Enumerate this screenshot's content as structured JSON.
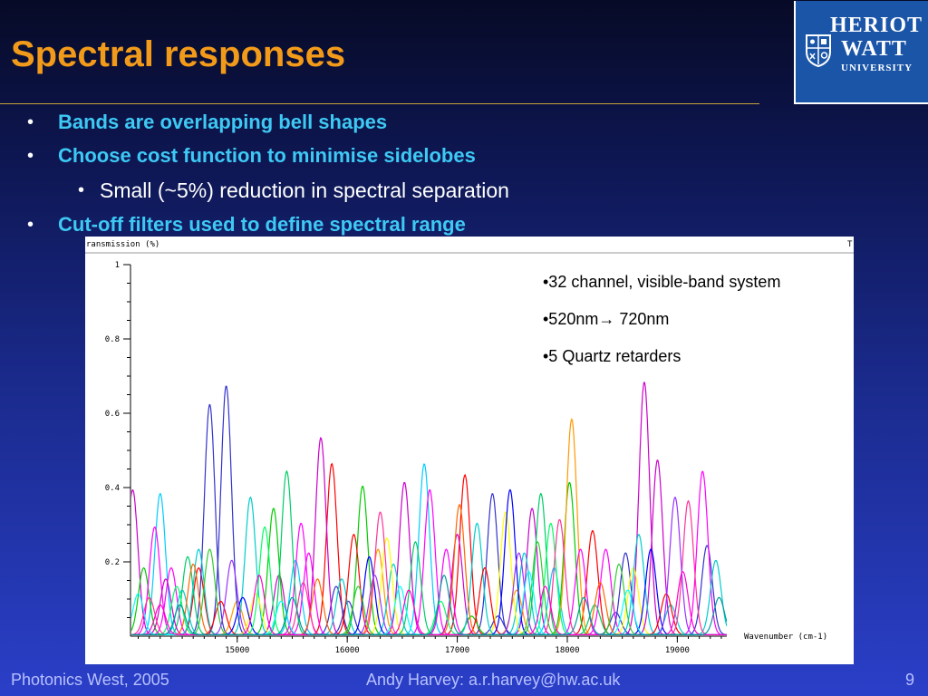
{
  "slide": {
    "title": "Spectral responses",
    "logo": {
      "line1": "HERIOT",
      "line2": "WATT",
      "line3": "UNIVERSITY"
    },
    "bullets": [
      {
        "text": "Bands are overlapping bell shapes",
        "level": 1
      },
      {
        "text": "Choose cost function to minimise sidelobes",
        "level": 1
      },
      {
        "text": "Small (~5%) reduction in spectral separation",
        "level": 2
      },
      {
        "text": "Cut-off filters used to define spectral range",
        "level": 1
      }
    ],
    "annotations": [
      "•32 channel, visible-band system",
      "•520nm→ 720nm",
      "•5 Quartz retarders"
    ],
    "footer": {
      "left": "Photonics West, 2005",
      "center": "Andy Harvey: a.r.harvey@hw.ac.uk",
      "page": "9"
    },
    "colors": {
      "title": "#f29a1a",
      "bullet_level1": "#3ec9f5",
      "rule": "#c9a23a",
      "logo_bg": "#1a55a8"
    }
  },
  "chart_data": {
    "type": "line",
    "ylabel": "ransmission (%)",
    "xlabel": "Wavenumber (cm-1)",
    "top_right_label": "T",
    "xlim": [
      14030,
      19450
    ],
    "ylim": [
      0,
      1
    ],
    "x_ticks": [
      15000,
      16000,
      17000,
      18000,
      19000
    ],
    "y_ticks": [
      0.2,
      0.4,
      0.6,
      0.8,
      1
    ],
    "y_tick_labels": [
      "0.2",
      "0.4",
      "0.6",
      "0.8",
      "1"
    ],
    "grid": false,
    "legend": "none",
    "channels": 32,
    "series": [
      {
        "color": "#cc00cc",
        "peaks": [
          [
            14050,
            0.39
          ],
          [
            15380,
            0.16
          ],
          [
            16520,
            0.41
          ],
          [
            17680,
            0.34
          ],
          [
            18700,
            0.68
          ]
        ]
      },
      {
        "color": "#ff0000",
        "peaks": [
          [
            14650,
            0.18
          ],
          [
            15860,
            0.46
          ],
          [
            17070,
            0.43
          ],
          [
            18230,
            0.28
          ]
        ]
      },
      {
        "color": "#00ccff",
        "peaks": [
          [
            14300,
            0.38
          ],
          [
            15530,
            0.2
          ],
          [
            16700,
            0.46
          ],
          [
            17880,
            0.18
          ]
        ]
      },
      {
        "color": "#3333cc",
        "peaks": [
          [
            14750,
            0.62
          ],
          [
            15900,
            0.13
          ],
          [
            17320,
            0.38
          ],
          [
            18440,
            0.06
          ]
        ]
      },
      {
        "color": "#00cc00",
        "peaks": [
          [
            14150,
            0.18
          ],
          [
            15330,
            0.34
          ],
          [
            16140,
            0.4
          ],
          [
            17130,
            0.05
          ],
          [
            18020,
            0.41
          ]
        ]
      },
      {
        "color": "#ff9900",
        "peaks": [
          [
            15000,
            0.09
          ],
          [
            16280,
            0.23
          ],
          [
            17540,
            0.12
          ],
          [
            18040,
            0.58
          ]
        ]
      },
      {
        "color": "#ff00ff",
        "peaks": [
          [
            14400,
            0.18
          ],
          [
            15580,
            0.3
          ],
          [
            16900,
            0.23
          ],
          [
            18350,
            0.23
          ]
        ]
      },
      {
        "color": "#00cccc",
        "peaks": [
          [
            14500,
            0.12
          ],
          [
            15120,
            0.37
          ],
          [
            16420,
            0.19
          ],
          [
            17610,
            0.22
          ],
          [
            18940,
            0.08
          ]
        ]
      },
      {
        "color": "#3333cc",
        "peaks": [
          [
            14900,
            0.67
          ],
          [
            16010,
            0.09
          ],
          [
            17370,
            0.05
          ],
          [
            18530,
            0.22
          ],
          [
            19270,
            0.24
          ]
        ]
      },
      {
        "color": "#ff00ff",
        "peaks": [
          [
            14250,
            0.29
          ],
          [
            15650,
            0.22
          ],
          [
            16750,
            0.39
          ],
          [
            18120,
            0.23
          ],
          [
            19230,
            0.44
          ]
        ]
      },
      {
        "color": "#ffff00",
        "peaks": [
          [
            15170,
            0.11
          ],
          [
            16360,
            0.26
          ],
          [
            17440,
            0.33
          ],
          [
            18600,
            0.18
          ]
        ]
      },
      {
        "color": "#00cc66",
        "peaks": [
          [
            14550,
            0.21
          ],
          [
            15450,
            0.44
          ],
          [
            16620,
            0.25
          ],
          [
            17760,
            0.38
          ],
          [
            18250,
            0.08
          ]
        ]
      },
      {
        "color": "#cc00cc",
        "peaks": [
          [
            14350,
            0.15
          ],
          [
            15760,
            0.53
          ],
          [
            17000,
            0.27
          ],
          [
            18820,
            0.47
          ]
        ]
      },
      {
        "color": "#00cccc",
        "peaks": [
          [
            14650,
            0.23
          ],
          [
            15950,
            0.15
          ],
          [
            17180,
            0.3
          ],
          [
            18650,
            0.27
          ],
          [
            19350,
            0.2
          ]
        ]
      },
      {
        "color": "#ff0000",
        "peaks": [
          [
            14850,
            0.09
          ],
          [
            16060,
            0.27
          ],
          [
            17250,
            0.18
          ],
          [
            18900,
            0.11
          ]
        ]
      },
      {
        "color": "#0000ff",
        "peaks": [
          [
            15050,
            0.1
          ],
          [
            16200,
            0.21
          ],
          [
            17480,
            0.39
          ],
          [
            18760,
            0.23
          ]
        ]
      },
      {
        "color": "#ff6600",
        "peaks": [
          [
            14600,
            0.19
          ],
          [
            15730,
            0.15
          ],
          [
            17020,
            0.35
          ],
          [
            18300,
            0.14
          ]
        ]
      },
      {
        "color": "#00ff66",
        "peaks": [
          [
            14450,
            0.13
          ],
          [
            15250,
            0.29
          ],
          [
            16850,
            0.09
          ],
          [
            17850,
            0.3
          ]
        ]
      },
      {
        "color": "#ff3399",
        "peaks": [
          [
            14200,
            0.1
          ],
          [
            15600,
            0.14
          ],
          [
            16300,
            0.33
          ],
          [
            17930,
            0.31
          ],
          [
            19100,
            0.36
          ]
        ]
      },
      {
        "color": "#33cc33",
        "peaks": [
          [
            14750,
            0.23
          ],
          [
            16100,
            0.13
          ],
          [
            17730,
            0.25
          ],
          [
            18470,
            0.19
          ]
        ]
      },
      {
        "color": "#9933ff",
        "peaks": [
          [
            14950,
            0.2
          ],
          [
            16250,
            0.16
          ],
          [
            17560,
            0.22
          ],
          [
            18980,
            0.37
          ]
        ]
      },
      {
        "color": "#00ffff",
        "peaks": [
          [
            14100,
            0.11
          ],
          [
            15400,
            0.09
          ],
          [
            16480,
            0.13
          ],
          [
            17650,
            0.17
          ],
          [
            18550,
            0.12
          ]
        ]
      },
      {
        "color": "#ff00cc",
        "peaks": [
          [
            14300,
            0.08
          ],
          [
            15200,
            0.16
          ],
          [
            16560,
            0.12
          ],
          [
            17800,
            0.13
          ],
          [
            19050,
            0.17
          ]
        ]
      },
      {
        "color": "#009999",
        "peaks": [
          [
            14480,
            0.08
          ],
          [
            15500,
            0.1
          ],
          [
            16880,
            0.16
          ],
          [
            18150,
            0.1
          ],
          [
            19380,
            0.1
          ]
        ]
      }
    ]
  }
}
